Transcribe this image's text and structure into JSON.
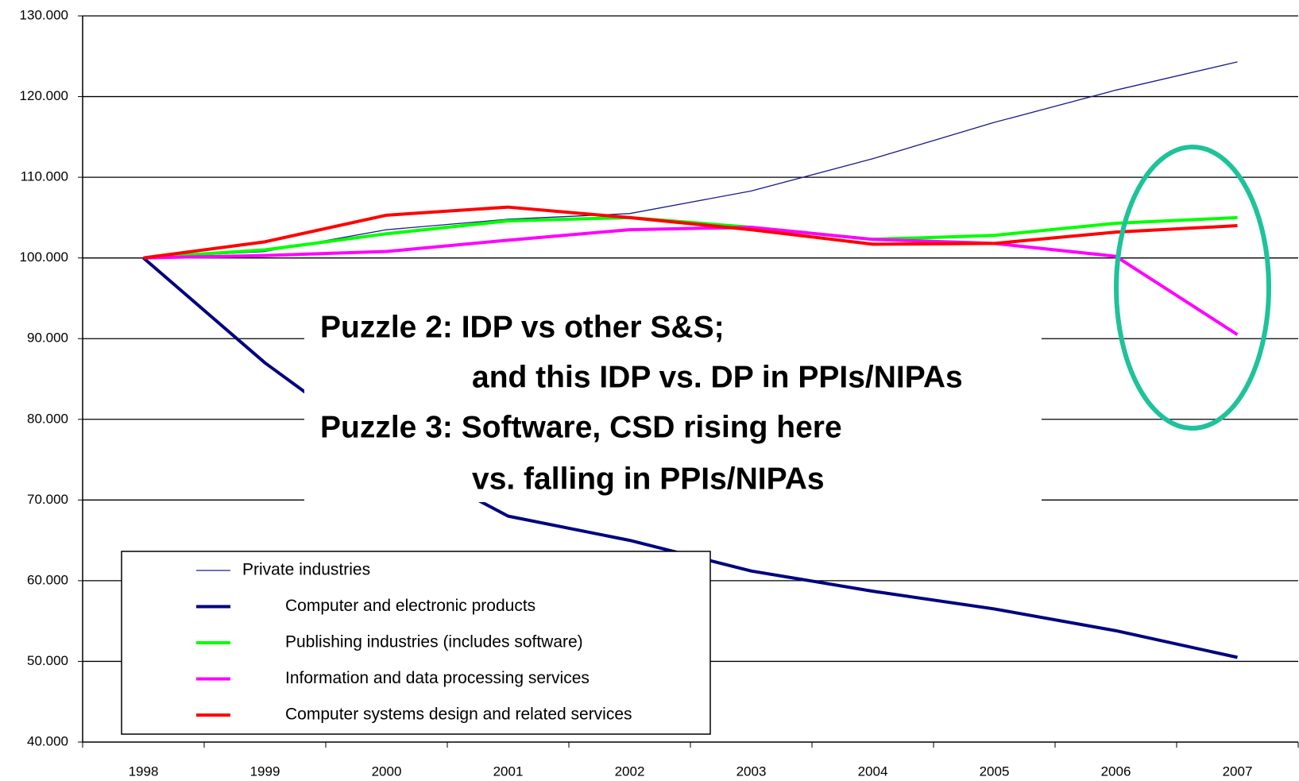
{
  "chart_data": {
    "type": "line",
    "categories": [
      "1998",
      "1999",
      "2000",
      "2001",
      "2002",
      "2003",
      "2004",
      "2005",
      "2006",
      "2007"
    ],
    "series": [
      {
        "name": "Private industries",
        "color": "#1a1a8c",
        "width": 1.3,
        "values": [
          100,
          100.8,
          103.5,
          104.8,
          105.5,
          108.3,
          112.3,
          116.8,
          120.8,
          124.3
        ]
      },
      {
        "name": "Computer and electronic products",
        "color": "#000080",
        "width": 4,
        "values": [
          100,
          87,
          76,
          68,
          65,
          61.2,
          58.7,
          56.5,
          53.8,
          50.5
        ]
      },
      {
        "name": "Publishing industries (includes software)",
        "color": "#00ff00",
        "width": 4,
        "values": [
          100,
          101,
          103,
          104.6,
          105,
          103.8,
          102.3,
          102.8,
          104.3,
          105
        ]
      },
      {
        "name": "Information and data processing services",
        "color": "#ff00ff",
        "width": 4,
        "values": [
          100,
          100.3,
          100.8,
          102.2,
          103.5,
          103.8,
          102.3,
          101.8,
          100.2,
          90.5
        ]
      },
      {
        "name": "Computer systems design and related services",
        "color": "#ff0000",
        "width": 4,
        "values": [
          100,
          102,
          105.3,
          106.3,
          105,
          103.5,
          101.7,
          101.8,
          103.2,
          104
        ]
      }
    ],
    "ylim": [
      40,
      130
    ],
    "yticks": [
      {
        "value": 40,
        "label": "40.000"
      },
      {
        "value": 50,
        "label": "50.000"
      },
      {
        "value": 60,
        "label": "60.000"
      },
      {
        "value": 70,
        "label": "70.000"
      },
      {
        "value": 80,
        "label": "80.000"
      },
      {
        "value": 90,
        "label": "90.000"
      },
      {
        "value": 100,
        "label": "100.000"
      },
      {
        "value": 110,
        "label": "110.000"
      },
      {
        "value": 120,
        "label": "120.000"
      },
      {
        "value": 130,
        "label": "130.000"
      }
    ],
    "grid": true,
    "legend": "lower left",
    "annotations": [
      "Puzzle 2: IDP vs other S&S;",
      "and this IDP vs. DP in PPIs/NIPAs",
      "Puzzle 3: Software, CSD rising here",
      "vs. falling in PPIs/NIPAs"
    ]
  }
}
